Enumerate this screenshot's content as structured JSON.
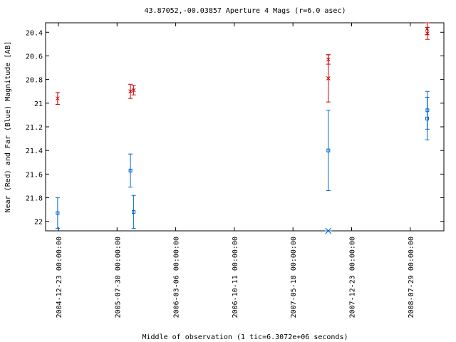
{
  "chart_data": {
    "type": "scatter",
    "title": "43.87052,-00.03857   Aperture 4 Mags (r=6.0 asec)",
    "xlabel": "Middle of observation (1 tic=6.3072e+06 seconds)",
    "ylabel": "Near (Red) and Far (Blue) Magnitude [AB]",
    "x_ticks": [
      "2004-12-23 00:00:00",
      "2005-07-30 00:00:00",
      "2006-03-06 00:00:00",
      "2006-10-11 00:00:00",
      "2007-05-18 00:00:00",
      "2007-12-23 00:00:00",
      "2008-07-29 00:00:00"
    ],
    "y_ticks": [
      "20.4",
      "20.6",
      "20.8",
      "21",
      "21.2",
      "21.4",
      "21.6",
      "21.8",
      "22"
    ],
    "ylim": [
      22.08,
      20.32
    ],
    "y_inverted": true,
    "grid": false,
    "series": [
      {
        "color": "#cc0000",
        "marker": "x",
        "points": [
          {
            "x": "2004-12-20",
            "y": 20.96,
            "err": 0.05
          },
          {
            "x": "2005-09-18",
            "y": 20.9,
            "err": 0.06
          },
          {
            "x": "2005-09-30",
            "y": 20.89,
            "err": 0.04
          },
          {
            "x": "2007-09-27",
            "y": 20.63,
            "err": 0.04
          },
          {
            "x": "2007-09-27",
            "y": 20.79,
            "err": 0.2
          },
          {
            "x": "2008-09-30",
            "y": 20.37,
            "err": 0.05
          },
          {
            "x": "2008-10-01",
            "y": 20.41,
            "err": 0.05
          }
        ]
      },
      {
        "color": "#0066cc",
        "marker": "square",
        "points": [
          {
            "x": "2004-12-20",
            "y": 21.93,
            "err": 0.13
          },
          {
            "x": "2005-09-18",
            "y": 21.57,
            "err": 0.14
          },
          {
            "x": "2005-09-30",
            "y": 21.92,
            "err": 0.14
          },
          {
            "x": "2007-09-27",
            "y": 21.4,
            "err": 0.34
          },
          {
            "x": "2008-09-30",
            "y": 21.13,
            "err": 0.18
          },
          {
            "x": "2008-10-01",
            "y": 21.06,
            "err": 0.16
          }
        ]
      }
    ],
    "markers": [
      {
        "x": "2007-09-27",
        "y": 22.08,
        "color": "#0066cc",
        "marker": "asterisk"
      }
    ]
  }
}
